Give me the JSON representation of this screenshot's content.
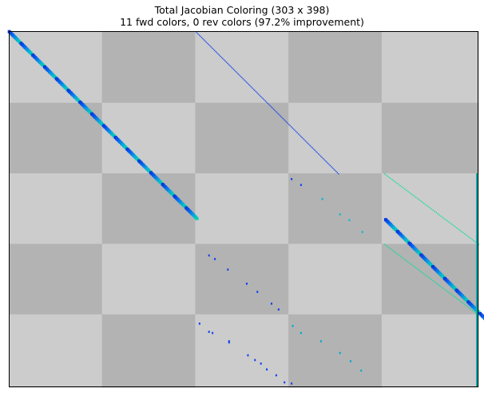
{
  "chart_data": {
    "type": "heatmap",
    "title": "Total Jacobian Coloring (303 x 398)",
    "subtitle": "11 fwd colors, 0 rev colors (97.2% improvement)",
    "n_rows": 303,
    "n_cols": 398,
    "block_row_bounds": [
      0,
      61,
      121,
      181,
      241,
      303
    ],
    "block_col_bounds": [
      0,
      79,
      158,
      237,
      316,
      398
    ],
    "block_colors": {
      "light": "#cccccc",
      "dark": "#b3b3b3"
    },
    "axes_visible": false,
    "colormap": [
      "#0033dd",
      "#0066ee",
      "#00aadd",
      "#00dda0"
    ],
    "diagonal_runs": [
      {
        "rows": [
          0,
          159
        ],
        "col_start": 0,
        "step": 1,
        "size": 3,
        "colors": "gradient"
      },
      {
        "rows": [
          160,
          301
        ],
        "col_start": 319,
        "step": 1,
        "size": 3,
        "colors": "gradient"
      },
      {
        "rows": [
          0,
          121
        ],
        "col_start": 158,
        "step": 1,
        "size": 1,
        "colors": "#1040ee"
      },
      {
        "rows": [
          121,
          181
        ],
        "col_start": 318,
        "step": 1.33,
        "size": 1,
        "colors": "#00dd99"
      },
      {
        "rows": [
          181,
          241
        ],
        "col_start": 318,
        "step": 1.33,
        "size": 1,
        "colors": "#00dd99"
      }
    ],
    "right_edge_column": {
      "col": 396,
      "rows": [
        121,
        303
      ],
      "color": "#00aaaa"
    },
    "scattered_points": [
      {
        "r": 125,
        "c": 239,
        "color": "#1040ee"
      },
      {
        "r": 130,
        "c": 247,
        "color": "#1040ee"
      },
      {
        "r": 142,
        "c": 265,
        "color": "#00bbcc"
      },
      {
        "r": 155,
        "c": 280,
        "color": "#00bbcc"
      },
      {
        "r": 160,
        "c": 288,
        "color": "#00bbcc"
      },
      {
        "r": 170,
        "c": 299,
        "color": "#00bbcc"
      },
      {
        "r": 190,
        "c": 169,
        "color": "#1040ee"
      },
      {
        "r": 193,
        "c": 174,
        "color": "#1040ee"
      },
      {
        "r": 202,
        "c": 185,
        "color": "#1040ee"
      },
      {
        "r": 214,
        "c": 201,
        "color": "#1040ee"
      },
      {
        "r": 221,
        "c": 210,
        "color": "#1040ee"
      },
      {
        "r": 231,
        "c": 222,
        "color": "#1040ee"
      },
      {
        "r": 236,
        "c": 228,
        "color": "#1040ee"
      },
      {
        "r": 248,
        "c": 161,
        "color": "#1040ee"
      },
      {
        "r": 255,
        "c": 169,
        "color": "#1040ee"
      },
      {
        "r": 256,
        "c": 172,
        "color": "#1040ee"
      },
      {
        "r": 263,
        "c": 186,
        "color": "#1040ee"
      },
      {
        "r": 264,
        "c": 186,
        "color": "#1040ee"
      },
      {
        "r": 275,
        "c": 202,
        "color": "#1040ee"
      },
      {
        "r": 279,
        "c": 208,
        "color": "#1040ee"
      },
      {
        "r": 282,
        "c": 213,
        "color": "#1040ee"
      },
      {
        "r": 287,
        "c": 218,
        "color": "#1040ee"
      },
      {
        "r": 292,
        "c": 226,
        "color": "#1040ee"
      },
      {
        "r": 298,
        "c": 233,
        "color": "#1040ee"
      },
      {
        "r": 299,
        "c": 239,
        "color": "#1040ee"
      },
      {
        "r": 250,
        "c": 240,
        "color": "#00aacc"
      },
      {
        "r": 256,
        "c": 247,
        "color": "#00aacc"
      },
      {
        "r": 263,
        "c": 264,
        "color": "#00aacc"
      },
      {
        "r": 273,
        "c": 280,
        "color": "#00aacc"
      },
      {
        "r": 280,
        "c": 289,
        "color": "#00aacc"
      },
      {
        "r": 288,
        "c": 298,
        "color": "#00aacc"
      }
    ]
  }
}
